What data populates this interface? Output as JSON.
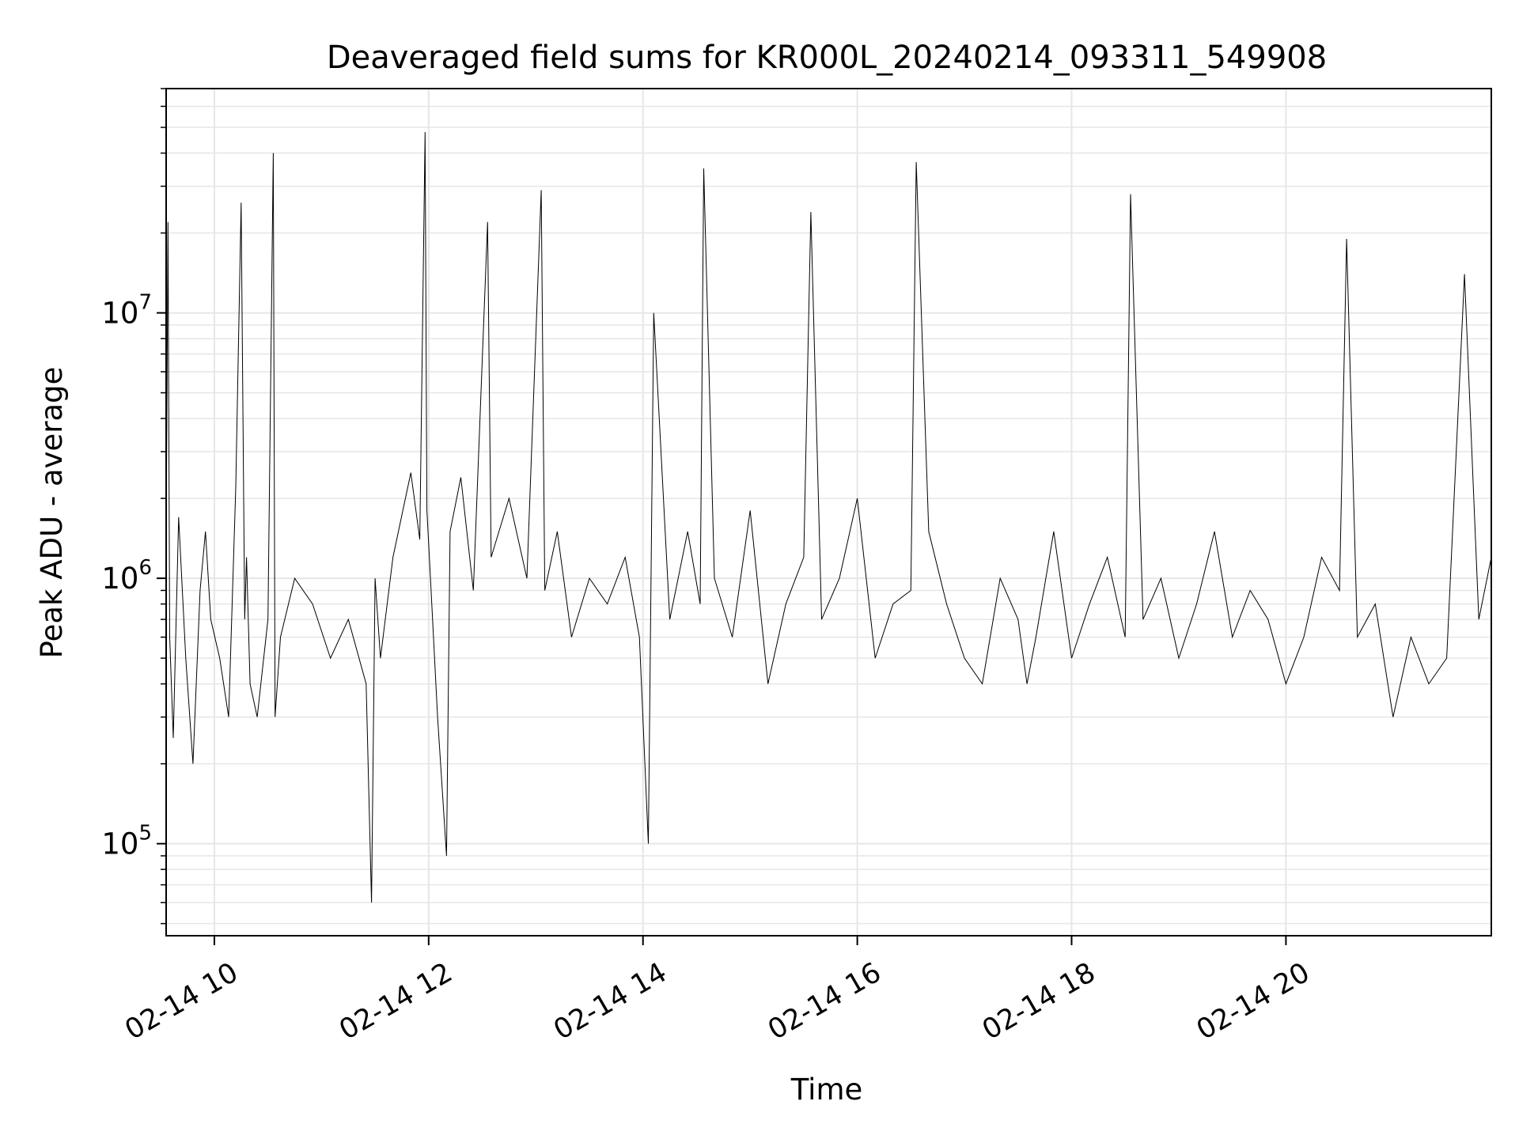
{
  "chart_data": {
    "type": "line",
    "title": "Deaveraged field sums for KR000L_20240214_093311_549908",
    "xlabel": "Time",
    "ylabel": "Peak ADU - average",
    "yscale": "log",
    "grid": true,
    "legend": "none",
    "line_color": "#000000",
    "xlim": [
      "02-14 09:33",
      "02-14 21:55"
    ],
    "ylim": [
      45000,
      70000000
    ],
    "x_ticks": [
      "02-14 10",
      "02-14 12",
      "02-14 14",
      "02-14 16",
      "02-14 18",
      "02-14 20"
    ],
    "y_ticks": [
      {
        "value": 100000,
        "base": "10",
        "exp": "5"
      },
      {
        "value": 1000000,
        "base": "10",
        "exp": "6"
      },
      {
        "value": 10000000,
        "base": "10",
        "exp": "7"
      }
    ],
    "series": [
      {
        "x": [
          "02-14 09:33",
          "02-14 09:34",
          "02-14 09:35",
          "02-14 09:37",
          "02-14 09:40",
          "02-14 09:44",
          "02-14 09:48",
          "02-14 09:52",
          "02-14 09:55",
          "02-14 09:58",
          "02-14 10:03",
          "02-14 10:08",
          "02-14 10:12",
          "02-14 10:15",
          "02-14 10:17",
          "02-14 10:18",
          "02-14 10:20",
          "02-14 10:24",
          "02-14 10:30",
          "02-14 10:33",
          "02-14 10:34",
          "02-14 10:37",
          "02-14 10:45",
          "02-14 10:55",
          "02-14 11:05",
          "02-14 11:15",
          "02-14 11:25",
          "02-14 11:28",
          "02-14 11:30",
          "02-14 11:33",
          "02-14 11:40",
          "02-14 11:50",
          "02-14 11:55",
          "02-14 11:58",
          "02-14 11:59",
          "02-14 12:01",
          "02-14 12:05",
          "02-14 12:10",
          "02-14 12:12",
          "02-14 12:18",
          "02-14 12:25",
          "02-14 12:33",
          "02-14 12:35",
          "02-14 12:45",
          "02-14 12:55",
          "02-14 13:03",
          "02-14 13:05",
          "02-14 13:12",
          "02-14 13:20",
          "02-14 13:30",
          "02-14 13:40",
          "02-14 13:50",
          "02-14 13:58",
          "02-14 14:03",
          "02-14 14:06",
          "02-14 14:15",
          "02-14 14:25",
          "02-14 14:32",
          "02-14 14:34",
          "02-14 14:40",
          "02-14 14:50",
          "02-14 15:00",
          "02-14 15:10",
          "02-14 15:20",
          "02-14 15:30",
          "02-14 15:34",
          "02-14 15:40",
          "02-14 15:50",
          "02-14 16:00",
          "02-14 16:10",
          "02-14 16:20",
          "02-14 16:30",
          "02-14 16:33",
          "02-14 16:40",
          "02-14 16:50",
          "02-14 17:00",
          "02-14 17:10",
          "02-14 17:20",
          "02-14 17:30",
          "02-14 17:35",
          "02-14 17:40",
          "02-14 17:50",
          "02-14 18:00",
          "02-14 18:10",
          "02-14 18:20",
          "02-14 18:30",
          "02-14 18:33",
          "02-14 18:40",
          "02-14 18:50",
          "02-14 19:00",
          "02-14 19:10",
          "02-14 19:20",
          "02-14 19:30",
          "02-14 19:40",
          "02-14 19:50",
          "02-14 20:00",
          "02-14 20:10",
          "02-14 20:20",
          "02-14 20:30",
          "02-14 20:34",
          "02-14 20:40",
          "02-14 20:50",
          "02-14 21:00",
          "02-14 21:10",
          "02-14 21:20",
          "02-14 21:30",
          "02-14 21:40",
          "02-14 21:48",
          "02-14 21:55"
        ],
        "y": [
          1300000,
          22000000,
          600000,
          250000,
          1700000,
          500000,
          200000,
          900000,
          1500000,
          700000,
          500000,
          300000,
          2200000,
          26000000,
          700000,
          1200000,
          400000,
          300000,
          700000,
          40000000,
          300000,
          600000,
          1000000,
          800000,
          500000,
          700000,
          400000,
          60000,
          1000000,
          500000,
          1200000,
          2500000,
          1400000,
          48000000,
          1800000,
          1000000,
          300000,
          90000,
          1500000,
          2400000,
          900000,
          22000000,
          1200000,
          2000000,
          1000000,
          29000000,
          900000,
          1500000,
          600000,
          1000000,
          800000,
          1200000,
          600000,
          100000,
          10000000,
          700000,
          1500000,
          800000,
          35000000,
          1000000,
          600000,
          1800000,
          400000,
          800000,
          1200000,
          24000000,
          700000,
          1000000,
          2000000,
          500000,
          800000,
          900000,
          37000000,
          1500000,
          800000,
          500000,
          400000,
          1000000,
          700000,
          400000,
          600000,
          1500000,
          500000,
          800000,
          1200000,
          600000,
          28000000,
          700000,
          1000000,
          500000,
          800000,
          1500000,
          600000,
          900000,
          700000,
          400000,
          600000,
          1200000,
          900000,
          19000000,
          600000,
          800000,
          300000,
          600000,
          400000,
          500000,
          14000000,
          700000,
          1200000
        ]
      }
    ]
  }
}
